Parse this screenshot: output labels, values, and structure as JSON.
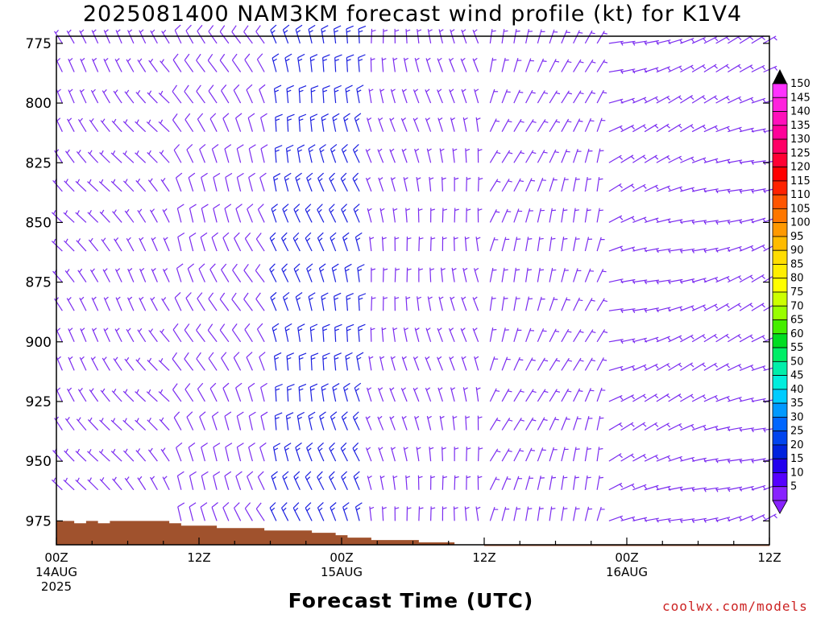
{
  "chart_data": {
    "type": "wind-profile",
    "title": "2025081400 NAM3KM forecast wind profile (kt) for K1V4",
    "xlabel": "Forecast Time (UTC)",
    "y_ticks": [
      "775",
      "800",
      "825",
      "850",
      "875",
      "900",
      "925",
      "950",
      "975"
    ],
    "y_ticks_values": [
      775,
      800,
      825,
      850,
      875,
      900,
      925,
      950,
      975
    ],
    "ylim": [
      985,
      772
    ],
    "x_ticks": [
      {
        "hour": 0,
        "lines": [
          "00Z",
          "14AUG",
          "2025"
        ]
      },
      {
        "hour": 12,
        "lines": [
          "12Z"
        ]
      },
      {
        "hour": 24,
        "lines": [
          "00Z",
          "15AUG"
        ]
      },
      {
        "hour": 36,
        "lines": [
          "12Z"
        ]
      },
      {
        "hour": 48,
        "lines": [
          "00Z",
          "16AUG"
        ]
      },
      {
        "hour": 60,
        "lines": [
          "12Z"
        ]
      }
    ],
    "xlim_hours": [
      0,
      60
    ],
    "levels_hpa": [
      775,
      787,
      800,
      812,
      825,
      837,
      850,
      862,
      875,
      887,
      900,
      912,
      925,
      937,
      950,
      962,
      975
    ],
    "terrain": [
      {
        "h": 0,
        "p": 975
      },
      {
        "h": 1.5,
        "p": 976
      },
      {
        "h": 2.5,
        "p": 975
      },
      {
        "h": 3.5,
        "p": 976
      },
      {
        "h": 4.5,
        "p": 975
      },
      {
        "h": 9.5,
        "p": 976
      },
      {
        "h": 10.5,
        "p": 977
      },
      {
        "h": 13.5,
        "p": 978
      },
      {
        "h": 17.5,
        "p": 979
      },
      {
        "h": 21.5,
        "p": 980
      },
      {
        "h": 23.5,
        "p": 981
      },
      {
        "h": 24.5,
        "p": 982
      },
      {
        "h": 26.5,
        "p": 983
      },
      {
        "h": 30.5,
        "p": 984
      },
      {
        "h": 33.5,
        "p": 985
      },
      {
        "h": 36,
        "p": 985.5
      },
      {
        "h": 60,
        "p": 985.5
      }
    ],
    "wind_regimes": [
      {
        "from_hour": 0,
        "to_hour": 10,
        "direction_deg": 325,
        "speed_kt": 7
      },
      {
        "from_hour": 10,
        "to_hour": 18,
        "direction_deg": 335,
        "speed_kt": 12
      },
      {
        "from_hour": 18,
        "to_hour": 26,
        "direction_deg": 345,
        "speed_kt": 16
      },
      {
        "from_hour": 26,
        "to_hour": 36,
        "direction_deg": 350,
        "speed_kt": 9
      },
      {
        "from_hour": 36,
        "to_hour": 46,
        "direction_deg": 20,
        "speed_kt": 5
      },
      {
        "from_hour": 46,
        "to_hour": 60,
        "direction_deg": 70,
        "speed_kt": 6
      }
    ],
    "colorbar": {
      "labels": [
        150,
        145,
        140,
        135,
        130,
        125,
        120,
        115,
        110,
        105,
        100,
        95,
        90,
        85,
        80,
        75,
        70,
        65,
        60,
        55,
        50,
        45,
        40,
        35,
        30,
        25,
        20,
        15,
        10,
        5
      ],
      "colors": [
        "#ff33ff",
        "#ff22dd",
        "#ff11bb",
        "#ff0099",
        "#ff0066",
        "#ff0033",
        "#ff0000",
        "#ff2200",
        "#ff5500",
        "#ff7700",
        "#ff9900",
        "#ffbb00",
        "#ffdd00",
        "#ffee00",
        "#ffff00",
        "#ccff00",
        "#99ff00",
        "#44ee00",
        "#00dd22",
        "#00ee66",
        "#00eeaa",
        "#00eedd",
        "#00ccff",
        "#0099ff",
        "#0066ff",
        "#0044ee",
        "#0022dd",
        "#2200ee",
        "#5500ff",
        "#8822ff"
      ],
      "unit": "kt"
    },
    "colors": {
      "terrain": "#a0522d",
      "barb_light": "#7b2cf0",
      "barb_strong": "#1c20e0"
    }
  },
  "credit": "coolwx.com/models"
}
